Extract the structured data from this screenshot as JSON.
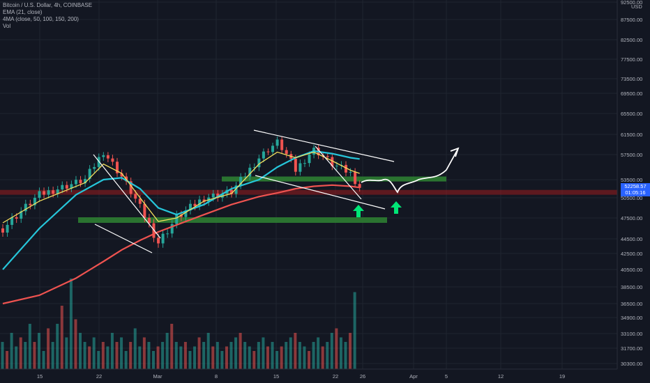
{
  "legend": {
    "symbol": "Bitcoin / U.S. Dollar, 4h, COINBASE",
    "ema": "EMA (21, close)",
    "ma4": "4MA (close, 50, 100, 150, 200)",
    "vol": "Vol"
  },
  "price_label": {
    "value": "52258.57",
    "countdown": "01:05:16"
  },
  "colors": {
    "background": "#131722",
    "grid": "#1f2430",
    "up": "#26a69a",
    "down": "#ef5350",
    "ema21": "#f6e05e",
    "ma_blue": "#26c6da",
    "ma_red": "#ef5350",
    "support_zone": "#2e7d32",
    "resistance_zone": "#b71c1c",
    "arrow": "#00e676",
    "current_price": "#2962ff"
  },
  "chart_data": {
    "type": "candlestick",
    "title": "Bitcoin / U.S. Dollar, 4h, COINBASE",
    "currency": "USD",
    "y_ticks": [
      92500,
      87500,
      82500,
      77500,
      73500,
      69500,
      65500,
      61500,
      57500,
      53500,
      50500,
      47500,
      44500,
      42500,
      40500,
      38500,
      36500,
      34900,
      33100,
      31700,
      30300
    ],
    "x_ticks": [
      "15",
      "22",
      "Mar",
      "8",
      "15",
      "22",
      "26",
      "Apr",
      "5",
      "12",
      "19"
    ],
    "price_path": [
      [
        0,
        46000
      ],
      [
        8,
        51000
      ],
      [
        18,
        53500
      ],
      [
        22,
        58000
      ],
      [
        26,
        54000
      ],
      [
        30,
        49000
      ],
      [
        34,
        44000
      ],
      [
        38,
        47500
      ],
      [
        44,
        50500
      ],
      [
        50,
        51500
      ],
      [
        56,
        57000
      ],
      [
        60,
        60000
      ],
      [
        64,
        55000
      ],
      [
        68,
        58500
      ],
      [
        72,
        56000
      ],
      [
        76,
        54500
      ],
      [
        78,
        52258
      ]
    ],
    "ema21": [
      [
        0,
        46800
      ],
      [
        8,
        50000
      ],
      [
        18,
        53000
      ],
      [
        22,
        56000
      ],
      [
        26,
        54500
      ],
      [
        30,
        50500
      ],
      [
        34,
        47000
      ],
      [
        38,
        47500
      ],
      [
        44,
        50000
      ],
      [
        50,
        51200
      ],
      [
        56,
        56000
      ],
      [
        60,
        58000
      ],
      [
        64,
        57000
      ],
      [
        68,
        58000
      ],
      [
        72,
        56500
      ],
      [
        76,
        55000
      ],
      [
        78,
        54500
      ]
    ],
    "ma_blue": [
      [
        0,
        40500
      ],
      [
        8,
        46000
      ],
      [
        16,
        51000
      ],
      [
        22,
        53500
      ],
      [
        26,
        53800
      ],
      [
        30,
        52000
      ],
      [
        34,
        49000
      ],
      [
        38,
        48000
      ],
      [
        44,
        49500
      ],
      [
        50,
        52000
      ],
      [
        56,
        53500
      ],
      [
        60,
        55500
      ],
      [
        64,
        57000
      ],
      [
        68,
        58200
      ],
      [
        72,
        57700
      ],
      [
        76,
        57000
      ],
      [
        78,
        56800
      ]
    ],
    "ma_red": [
      [
        0,
        36500
      ],
      [
        8,
        37500
      ],
      [
        16,
        39500
      ],
      [
        22,
        41500
      ],
      [
        26,
        43000
      ],
      [
        30,
        44300
      ],
      [
        34,
        45500
      ],
      [
        38,
        46500
      ],
      [
        44,
        48000
      ],
      [
        50,
        49500
      ],
      [
        56,
        50700
      ],
      [
        60,
        51300
      ],
      [
        64,
        52000
      ],
      [
        68,
        52400
      ],
      [
        72,
        52600
      ],
      [
        76,
        52400
      ],
      [
        78,
        52200
      ]
    ],
    "volume_relative": [
      0.3,
      0.2,
      0.4,
      0.25,
      0.35,
      0.3,
      0.5,
      0.3,
      0.4,
      0.2,
      0.45,
      0.3,
      0.5,
      0.7,
      0.35,
      1.0,
      0.55,
      0.4,
      0.3,
      0.25,
      0.35,
      0.2,
      0.3,
      0.25,
      0.4,
      0.3,
      0.35,
      0.2,
      0.3,
      0.45,
      0.25,
      0.35,
      0.3,
      0.2,
      0.25,
      0.3,
      0.4,
      0.5,
      0.3,
      0.25,
      0.3,
      0.2,
      0.25,
      0.35,
      0.3,
      0.4,
      0.25,
      0.3,
      0.2,
      0.25,
      0.3,
      0.35,
      0.4,
      0.3,
      0.25,
      0.2,
      0.3,
      0.35,
      0.25,
      0.3,
      0.2,
      0.25,
      0.3,
      0.35,
      0.4,
      0.3,
      0.25,
      0.2,
      0.3,
      0.35,
      0.25,
      0.3,
      0.4,
      0.45,
      0.35,
      0.3,
      0.4,
      0.85
    ],
    "zones": {
      "support_upper": {
        "low": 53200,
        "high": 54000
      },
      "support_lower": {
        "low": 46800,
        "high": 47600
      },
      "resistance": {
        "low": 51000,
        "high": 51800
      }
    }
  }
}
